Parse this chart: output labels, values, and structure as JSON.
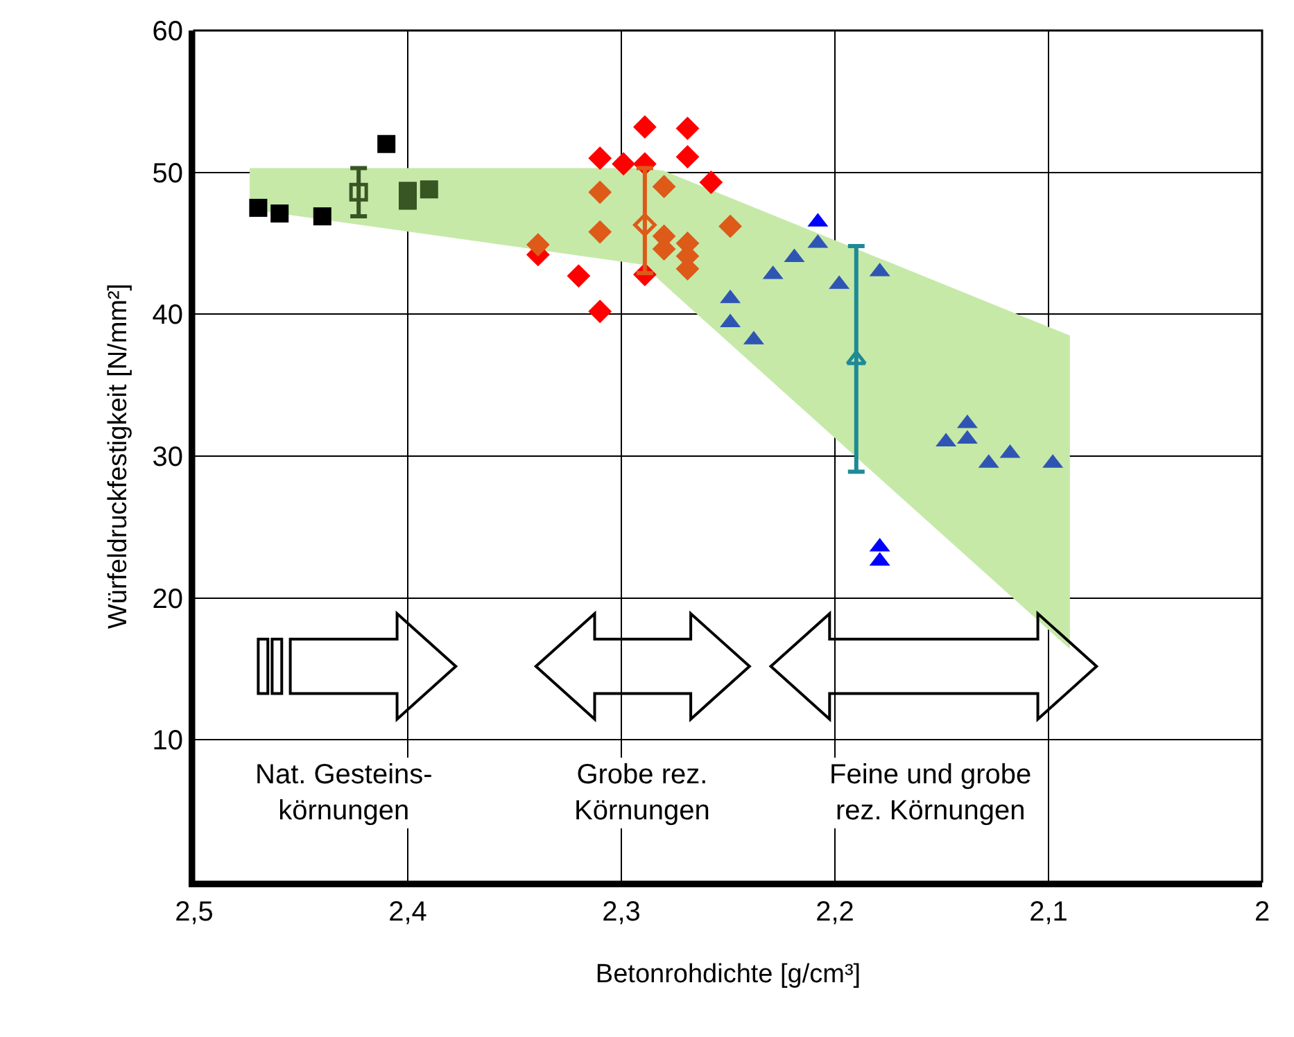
{
  "chart_data": {
    "type": "scatter",
    "xlabel": "Betonrohdichte [g/cm³]",
    "ylabel": "Würfeldruckfestigkeit [N/mm²]",
    "xlim": [
      2.5,
      2.0
    ],
    "xticks": [
      {
        "value": 2.5,
        "label": "2,5"
      },
      {
        "value": 2.4,
        "label": "2,4"
      },
      {
        "value": 2.3,
        "label": "2,3"
      },
      {
        "value": 2.2,
        "label": "2,2"
      },
      {
        "value": 2.1,
        "label": "2,1"
      },
      2
    ],
    "ylim": [
      0,
      60
    ],
    "yticks": [
      10,
      20,
      30,
      40,
      50,
      60
    ],
    "grid": true,
    "series": [
      {
        "type": "area",
        "color": "#c6e9a8",
        "x": [
          2.474,
          2.29,
          2.28,
          2.09
        ],
        "values": [
          null,
          null,
          null,
          null
        ],
        "upper": [
          50.3,
          50.3,
          50.1,
          38.5
        ],
        "lower": [
          47.4,
          43.5,
          42.1,
          16.4
        ]
      },
      {
        "marker": "square",
        "color": "#000000",
        "x": [
          2.47,
          2.46,
          2.44,
          2.41
        ],
        "values": [
          47.5,
          47.1,
          46.9,
          52.0
        ]
      },
      {
        "marker": "square",
        "color": "#375623",
        "x": [
          2.4,
          2.39,
          2.4
        ],
        "values": [
          48.7,
          48.8,
          48.0
        ]
      },
      {
        "marker": "square",
        "color": "#375623",
        "x": [
          2.423
        ],
        "values": [
          48.6
        ],
        "errors": [
          [
            46.9,
            50.3
          ]
        ]
      },
      {
        "marker": "diamond",
        "color": "#ff0000",
        "x": [
          2.289,
          2.269,
          2.269,
          2.31,
          2.299,
          2.289,
          2.258,
          2.339,
          2.32,
          2.289,
          2.31
        ],
        "values": [
          53.2,
          53.1,
          51.1,
          51.0,
          50.6,
          50.6,
          49.3,
          44.2,
          42.7,
          42.8,
          40.2
        ]
      },
      {
        "marker": "diamond",
        "color": "#dd5a18",
        "x": [
          2.339,
          2.31,
          2.31,
          2.28,
          2.28,
          2.28,
          2.269,
          2.269,
          2.269,
          2.249
        ],
        "values": [
          44.9,
          48.6,
          45.8,
          49.0,
          45.5,
          44.6,
          45.0,
          44.1,
          43.2,
          46.2
        ]
      },
      {
        "marker": "diamond",
        "color": "#dd5a18",
        "x": [
          2.289
        ],
        "values": [
          46.3
        ],
        "errors": [
          [
            42.9,
            50.3
          ]
        ]
      },
      {
        "marker": "triangle",
        "color": "#0000ff",
        "x": [
          2.208,
          2.179,
          2.179
        ],
        "values": [
          46.5,
          23.6,
          22.6
        ]
      },
      {
        "marker": "triangle",
        "color": "#2f55b4",
        "x": [
          2.208,
          2.219,
          2.229,
          2.198,
          2.179,
          2.249,
          2.249,
          2.238,
          2.138,
          2.138,
          2.148,
          2.128,
          2.118,
          2.098
        ],
        "values": [
          45.0,
          44.0,
          42.8,
          42.1,
          43.0,
          41.1,
          39.4,
          38.2,
          32.3,
          31.2,
          31.0,
          29.5,
          30.2,
          29.5
        ]
      },
      {
        "marker": "triangle",
        "color": "#1f8a96",
        "x": [
          2.19
        ],
        "values": [
          36.8
        ],
        "errors": [
          [
            28.9,
            44.8
          ]
        ]
      }
    ],
    "annotations": [
      "Nat. Gesteins-\nkörnungen",
      "Grobe rez.\nKörnungen",
      "Feine und grobe\nrez. Körnungen"
    ]
  }
}
